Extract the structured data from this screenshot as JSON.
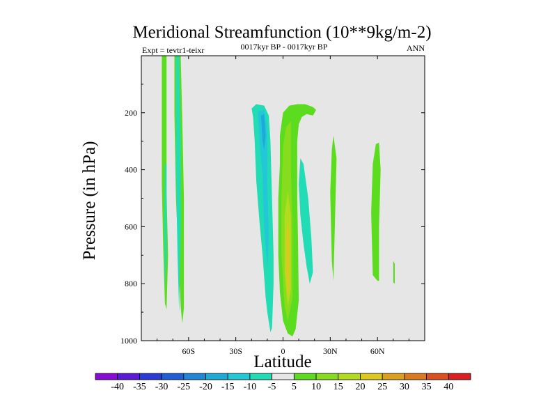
{
  "chart_data": {
    "type": "heatmap",
    "title": "Meridional Streamfunction (10**9kg/m-2)",
    "subtitle": "0017kyr BP - 0017kyr BP",
    "left_label": "Expt = tevtr1-teixr",
    "right_label": "ANN",
    "xlabel": "Latitude",
    "ylabel": "Pressure (in hPa)",
    "xlim": [
      -90,
      90
    ],
    "ylim": [
      1000,
      0
    ],
    "x_ticks": [
      {
        "value": -60,
        "label": "60S"
      },
      {
        "value": -30,
        "label": "30S"
      },
      {
        "value": 0,
        "label": "0"
      },
      {
        "value": 30,
        "label": "30N"
      },
      {
        "value": 60,
        "label": "60N"
      }
    ],
    "y_ticks": [
      {
        "value": 200,
        "label": "200"
      },
      {
        "value": 400,
        "label": "400"
      },
      {
        "value": 600,
        "label": "600"
      },
      {
        "value": 800,
        "label": "800"
      },
      {
        "value": 1000,
        "label": "1000"
      }
    ],
    "background_color": "#e6e6e6",
    "colorbar": {
      "labels": [
        "-40",
        "-35",
        "-30",
        "-25",
        "-20",
        "-15",
        "-10",
        "-5",
        "5",
        "10",
        "15",
        "20",
        "25",
        "30",
        "35",
        "40"
      ],
      "colors": [
        "#8a0ad6",
        "#5a1ad8",
        "#2a3ad8",
        "#1e5fd8",
        "#1f86d8",
        "#1eaad8",
        "#22c8d8",
        "#22dcb6",
        "#e6e6e6",
        "#5cdc1e",
        "#88dc1e",
        "#b4dc1e",
        "#dcc81e",
        "#dca01e",
        "#dc781e",
        "#dc501e",
        "#dc1e1e"
      ]
    },
    "contours": [
      {
        "name": "sh-polar-band-1",
        "level": 5,
        "color": "#5cdc1e",
        "points": [
          [
            -77,
            0
          ],
          [
            -74,
            0
          ],
          [
            -74,
            180
          ],
          [
            -74,
            480
          ],
          [
            -73,
            700
          ],
          [
            -74,
            890
          ],
          [
            -75,
            870
          ],
          [
            -76,
            700
          ],
          [
            -77,
            450
          ],
          [
            -77,
            180
          ]
        ]
      },
      {
        "name": "sh-polar-band-2",
        "level": 5,
        "color": "#5cdc1e",
        "points": [
          [
            -69,
            0
          ],
          [
            -65,
            0
          ],
          [
            -64,
            220
          ],
          [
            -63,
            500
          ],
          [
            -63,
            800
          ],
          [
            -63,
            885
          ],
          [
            -64,
            940
          ],
          [
            -65,
            880
          ],
          [
            -66,
            760
          ],
          [
            -68,
            500
          ],
          [
            -69,
            200
          ]
        ]
      },
      {
        "name": "sh-polar-band-2-core",
        "level": -5,
        "color": "#22dcb6",
        "points": [
          [
            -68,
            0
          ],
          [
            -66,
            0
          ],
          [
            -65,
            300
          ],
          [
            -65,
            600
          ],
          [
            -66,
            900
          ],
          [
            -67,
            700
          ],
          [
            -68,
            400
          ]
        ]
      },
      {
        "name": "sh-polar-band-1-core",
        "level": -5,
        "color": "#22dcb6",
        "points": [
          [
            -75,
            380
          ],
          [
            -74,
            380
          ],
          [
            -74,
            700
          ],
          [
            -75,
            820
          ],
          [
            -75.5,
            600
          ]
        ]
      },
      {
        "name": "sh-ferrel-cell",
        "level": -5,
        "color": "#22dcb6",
        "points": [
          [
            -20,
            185
          ],
          [
            -17,
            170
          ],
          [
            -12,
            175
          ],
          [
            -9,
            210
          ],
          [
            -8,
            300
          ],
          [
            -7,
            500
          ],
          [
            -6,
            700
          ],
          [
            -6,
            800
          ],
          [
            -7,
            955
          ],
          [
            -8,
            970
          ],
          [
            -10,
            900
          ],
          [
            -11,
            850
          ],
          [
            -13,
            700
          ],
          [
            -15,
            580
          ],
          [
            -17,
            440
          ],
          [
            -18,
            300
          ],
          [
            -19,
            215
          ]
        ]
      },
      {
        "name": "sh-ferrel-core",
        "level": -10,
        "color": "#22c8d8",
        "points": [
          [
            -16,
            195
          ],
          [
            -12,
            190
          ],
          [
            -10,
            260
          ],
          [
            -10,
            450
          ],
          [
            -9,
            640
          ],
          [
            -10,
            750
          ],
          [
            -12,
            600
          ],
          [
            -13,
            420
          ],
          [
            -15,
            300
          ]
        ]
      },
      {
        "name": "sh-ferrel-inner",
        "level": -15,
        "color": "#1eaad8",
        "points": [
          [
            -14,
            210
          ],
          [
            -12,
            205
          ],
          [
            -11,
            280
          ],
          [
            -12,
            330
          ],
          [
            -13,
            300
          ]
        ]
      },
      {
        "name": "hadley-cell",
        "level": 5,
        "color": "#5cdc1e",
        "points": [
          [
            -2,
            280
          ],
          [
            0,
            200
          ],
          [
            4,
            175
          ],
          [
            9,
            170
          ],
          [
            14,
            170
          ],
          [
            19,
            180
          ],
          [
            21,
            190
          ],
          [
            19,
            210
          ],
          [
            15,
            205
          ],
          [
            12,
            215
          ],
          [
            10,
            240
          ],
          [
            9,
            300
          ],
          [
            9,
            500
          ],
          [
            9.5,
            650
          ],
          [
            10,
            860
          ],
          [
            8,
            960
          ],
          [
            6,
            985
          ],
          [
            3,
            975
          ],
          [
            0,
            930
          ],
          [
            -2,
            830
          ],
          [
            -3,
            700
          ],
          [
            -3,
            500
          ],
          [
            -2,
            380
          ]
        ]
      },
      {
        "name": "hadley-core-10",
        "level": 10,
        "color": "#88dc1e",
        "points": [
          [
            0,
            320
          ],
          [
            2,
            250
          ],
          [
            5,
            230
          ],
          [
            5,
            400
          ],
          [
            6,
            600
          ],
          [
            6,
            850
          ],
          [
            3,
            930
          ],
          [
            1,
            880
          ],
          [
            -1,
            700
          ],
          [
            -1,
            500
          ]
        ]
      },
      {
        "name": "hadley-core-15",
        "level": 15,
        "color": "#b4dc1e",
        "points": [
          [
            1,
            560
          ],
          [
            3,
            480
          ],
          [
            5,
            560
          ],
          [
            5,
            820
          ],
          [
            3,
            880
          ],
          [
            1,
            760
          ]
        ]
      },
      {
        "name": "hadley-core-20",
        "level": 20,
        "color": "#dcc81e",
        "points": [
          [
            2,
            640
          ],
          [
            3,
            580
          ],
          [
            4,
            650
          ],
          [
            4,
            820
          ],
          [
            3,
            850
          ],
          [
            2,
            760
          ]
        ]
      },
      {
        "name": "tropical-neg-band",
        "level": -5,
        "color": "#22dcb6",
        "points": [
          [
            11,
            360
          ],
          [
            13,
            380
          ],
          [
            16,
            500
          ],
          [
            18,
            640
          ],
          [
            19,
            760
          ],
          [
            17,
            800
          ],
          [
            15,
            740
          ],
          [
            13,
            660
          ],
          [
            11,
            560
          ],
          [
            10,
            450
          ]
        ]
      },
      {
        "name": "nh-midlat-band",
        "level": 5,
        "color": "#5cdc1e",
        "points": [
          [
            32,
            280
          ],
          [
            34,
            360
          ],
          [
            33,
            580
          ],
          [
            32,
            790
          ],
          [
            31,
            720
          ],
          [
            30,
            480
          ],
          [
            31,
            330
          ]
        ]
      },
      {
        "name": "nh-ferrel-band",
        "level": 5,
        "color": "#5cdc1e",
        "points": [
          [
            59,
            310
          ],
          [
            61,
            305
          ],
          [
            62,
            400
          ],
          [
            61,
            600
          ],
          [
            61,
            790
          ],
          [
            60,
            790
          ],
          [
            57,
            770
          ],
          [
            56,
            550
          ],
          [
            57,
            380
          ]
        ]
      },
      {
        "name": "nh-polar-sliver",
        "level": 5,
        "color": "#5cdc1e",
        "points": [
          [
            70,
            720
          ],
          [
            71,
            730
          ],
          [
            71,
            800
          ],
          [
            70,
            795
          ]
        ]
      }
    ]
  }
}
